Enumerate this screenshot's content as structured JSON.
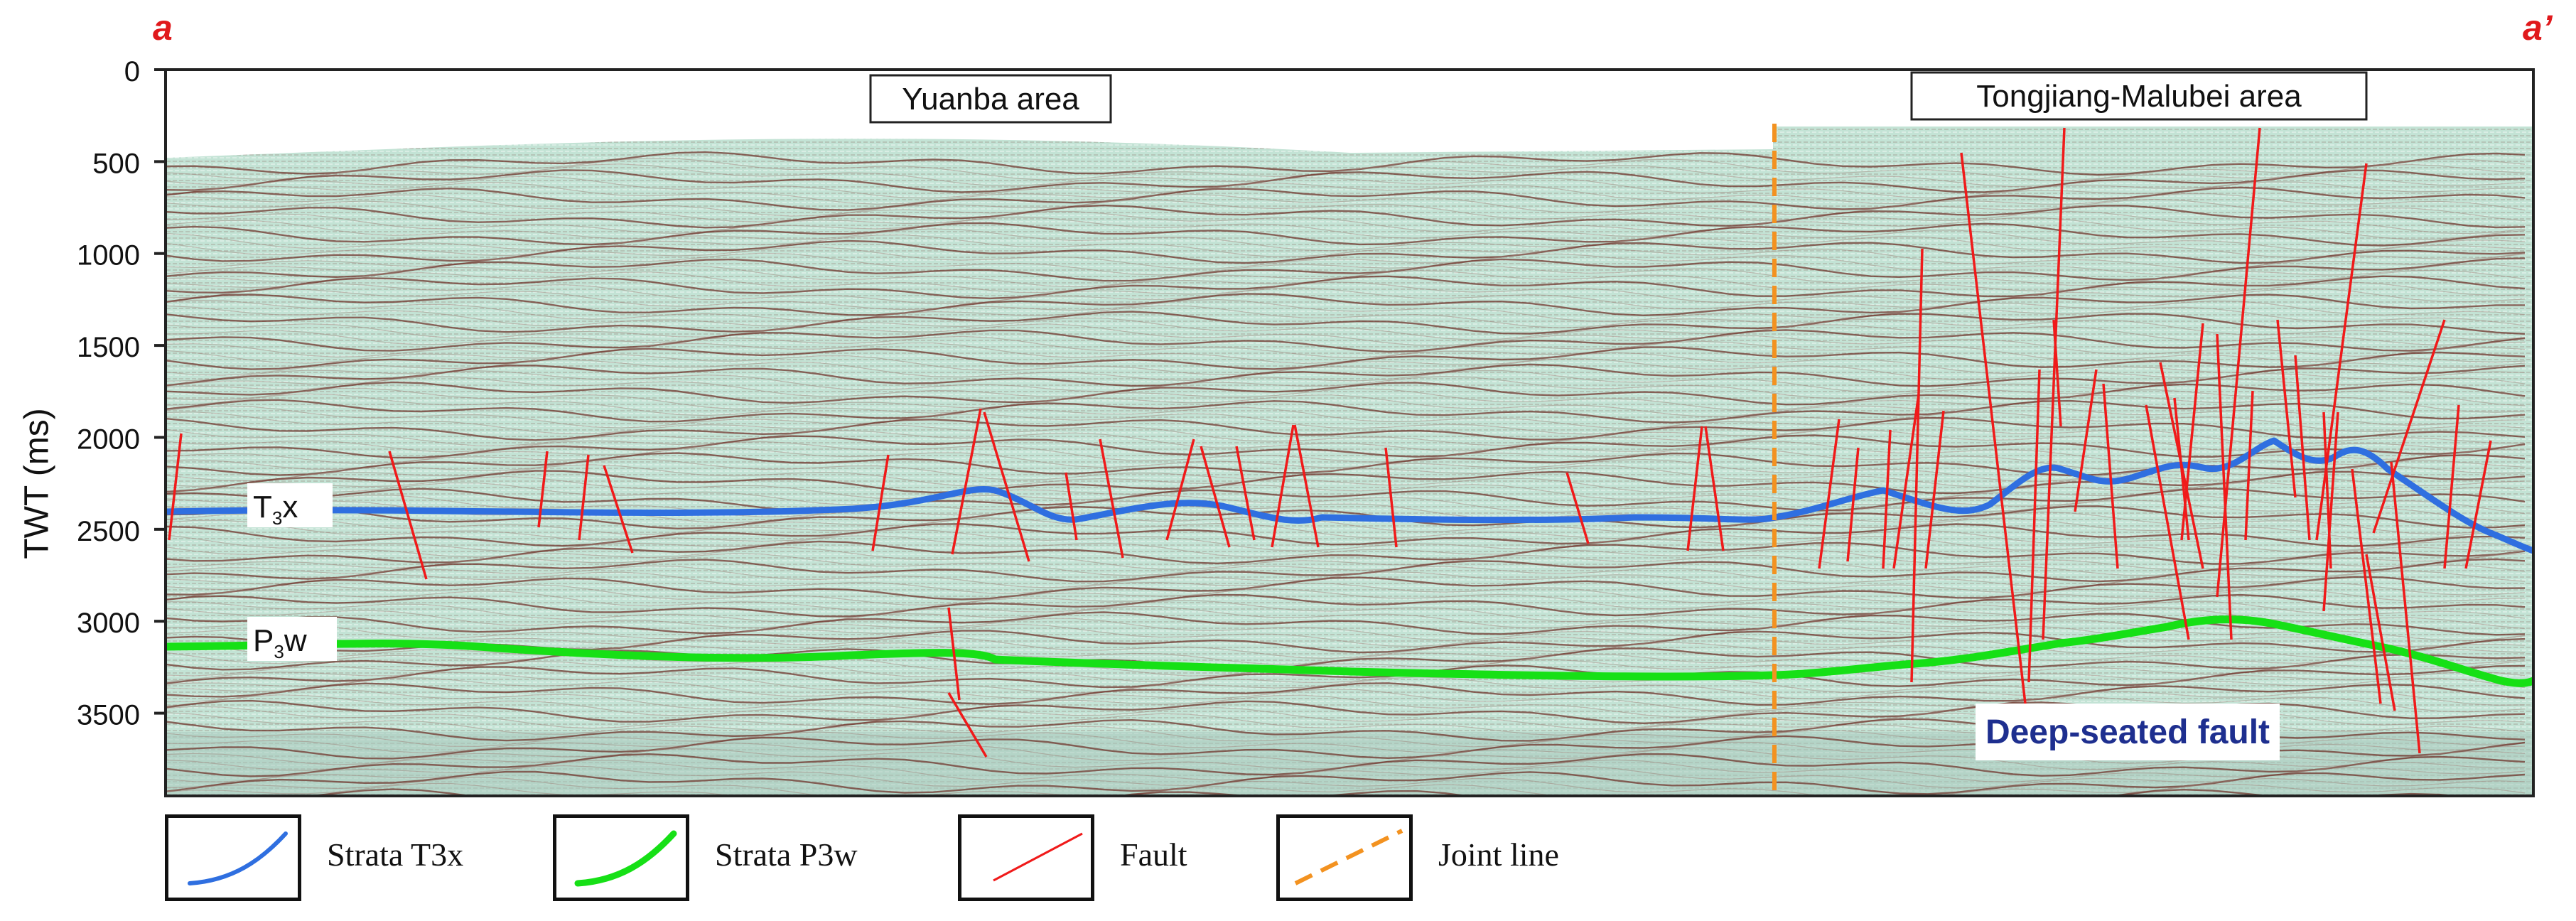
{
  "corners": {
    "left": "a",
    "right": "a’"
  },
  "y_axis": {
    "title": "TWT (ms)",
    "ticks": [
      "0",
      "500",
      "1000",
      "1500",
      "2000",
      "2500",
      "3000",
      "3500"
    ],
    "tick_values": [
      0,
      500,
      1000,
      1500,
      2000,
      2500,
      3000,
      3500
    ],
    "max": 3950
  },
  "areas": {
    "left": "Yuanba area",
    "right": "Tongjiang-Malubei area"
  },
  "horizons": {
    "t3x": {
      "base": "T",
      "sub": "3",
      "tail": "x",
      "color": "#2f6fe0"
    },
    "p3w": {
      "base": "P",
      "sub": "3",
      "tail": "w",
      "color": "#16e016"
    }
  },
  "annotation": "Deep-seated fault",
  "colors": {
    "fault": "#f01a1a",
    "joint_line": "#f39220",
    "seismic_bg": "#bfe0d2",
    "reflector": "#6b2b22",
    "annotation": "#1e2f8f"
  },
  "legend": [
    {
      "label": "Strata T3x",
      "icon": "blue-curve"
    },
    {
      "label": "Strata P3w",
      "icon": "green-curve"
    },
    {
      "label": "Fault",
      "icon": "red-line"
    },
    {
      "label": "Joint line",
      "icon": "orange-dashed-line"
    }
  ]
}
